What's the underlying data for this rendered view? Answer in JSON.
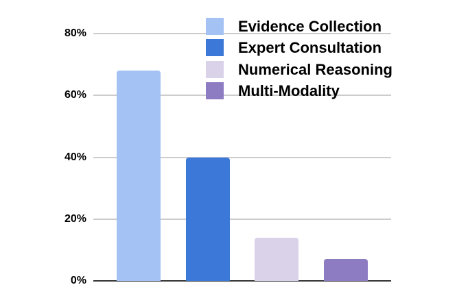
{
  "chart_data": {
    "type": "bar",
    "title": "",
    "xlabel": "",
    "ylabel": "",
    "categories": [
      "Evidence Collection",
      "Expert Consultation",
      "Numerical Reasoning",
      "Multi-Modality"
    ],
    "values": [
      68,
      40,
      14,
      7
    ],
    "value_unit": "%",
    "colors": [
      "#a4c2f4",
      "#3c78d8",
      "#d9d2e9",
      "#8e7cc3"
    ],
    "y_ticks": [
      "0%",
      "20%",
      "40%",
      "60%",
      "80%"
    ],
    "y_tick_values": [
      0,
      20,
      40,
      60,
      80
    ],
    "ylim": [
      0,
      80
    ],
    "grid": "on",
    "legend_position": "top-right",
    "styles": {
      "grid_color": "#cccccc",
      "axis_color": "#333333",
      "label_color": "#000000",
      "background": "#ffffff"
    }
  }
}
